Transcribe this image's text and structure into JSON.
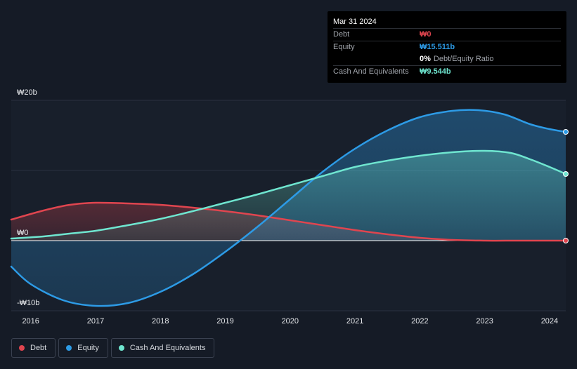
{
  "tooltip": {
    "date": "Mar 31 2024",
    "debt_label": "Debt",
    "debt_value": "₩0",
    "equity_label": "Equity",
    "equity_value": "₩15.511b",
    "ratio_value": "0%",
    "ratio_label": "Debt/Equity Ratio",
    "cash_label": "Cash And Equivalents",
    "cash_value": "₩9.544b"
  },
  "legend": {
    "debt": "Debt",
    "equity": "Equity",
    "cash": "Cash And Equivalents"
  },
  "colors": {
    "debt": "#e0454f",
    "equity": "#2d9be6",
    "cash": "#6fe6d0",
    "background": "#151b26"
  },
  "chart_data": {
    "type": "area",
    "title": "",
    "xlabel": "",
    "ylabel": "",
    "x_ticks": [
      "2016",
      "2017",
      "2018",
      "2019",
      "2020",
      "2021",
      "2022",
      "2023",
      "2024"
    ],
    "y_ticks": [
      {
        "value": 20,
        "label": "₩20b"
      },
      {
        "value": 0,
        "label": "₩0"
      },
      {
        "value": -10,
        "label": "-₩10b"
      }
    ],
    "ylim": [
      -10,
      20
    ],
    "xlim": [
      2015.7,
      2024.25
    ],
    "series": [
      {
        "name": "Debt",
        "x": [
          2015.7,
          2016.2,
          2016.6,
          2017.0,
          2017.5,
          2018.0,
          2018.5,
          2019.0,
          2019.5,
          2020.0,
          2020.5,
          2021.0,
          2021.5,
          2022.0,
          2022.5,
          2023.0,
          2023.5,
          2024.0,
          2024.25
        ],
        "values": [
          3.0,
          4.3,
          5.1,
          5.4,
          5.3,
          5.1,
          4.7,
          4.2,
          3.6,
          2.9,
          2.2,
          1.5,
          0.9,
          0.4,
          0.1,
          0.0,
          0.0,
          0.0,
          0.0
        ]
      },
      {
        "name": "Equity",
        "x": [
          2015.7,
          2016.0,
          2016.5,
          2017.0,
          2017.5,
          2018.0,
          2018.5,
          2019.0,
          2019.5,
          2020.0,
          2020.5,
          2021.0,
          2021.5,
          2022.0,
          2022.5,
          2022.9,
          2023.3,
          2023.7,
          2024.0,
          2024.25
        ],
        "values": [
          -3.7,
          -6.2,
          -8.5,
          -9.3,
          -8.9,
          -7.3,
          -4.8,
          -1.6,
          2.0,
          5.9,
          9.8,
          13.1,
          15.7,
          17.6,
          18.5,
          18.6,
          18.0,
          16.6,
          15.9,
          15.5
        ]
      },
      {
        "name": "Cash And Equivalents",
        "x": [
          2015.7,
          2016.2,
          2016.6,
          2017.0,
          2017.5,
          2018.0,
          2018.5,
          2019.0,
          2019.5,
          2020.0,
          2020.5,
          2021.0,
          2021.5,
          2022.0,
          2022.5,
          2023.0,
          2023.4,
          2023.7,
          2024.0,
          2024.25
        ],
        "values": [
          0.3,
          0.6,
          1.0,
          1.4,
          2.2,
          3.1,
          4.2,
          5.4,
          6.6,
          7.9,
          9.2,
          10.5,
          11.4,
          12.1,
          12.6,
          12.8,
          12.5,
          11.6,
          10.5,
          9.5
        ]
      }
    ],
    "legend_position": "bottom-left",
    "grid": true
  }
}
